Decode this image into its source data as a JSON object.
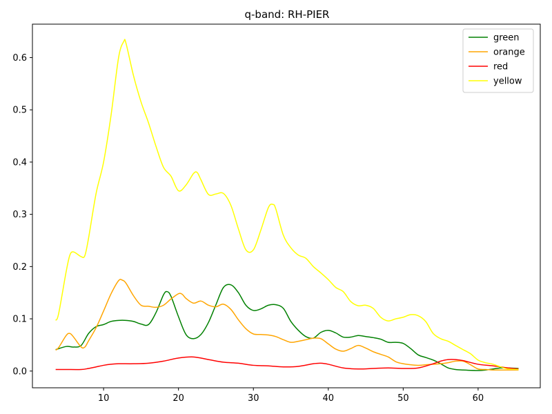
{
  "chart_data": {
    "type": "line",
    "title": "q-band: RH-PIER",
    "xlabel": "",
    "ylabel": "",
    "xlim": [
      0.5,
      68.3
    ],
    "ylim": [
      -0.032,
      0.664
    ],
    "xticks": [
      10,
      20,
      30,
      40,
      50,
      60
    ],
    "yticks": [
      0.0,
      0.1,
      0.2,
      0.3,
      0.4,
      0.5,
      0.6
    ],
    "ytick_labels": [
      "0.0",
      "0.1",
      "0.2",
      "0.3",
      "0.4",
      "0.5",
      "0.6"
    ],
    "grid": false,
    "legend_position": "top-right",
    "series": [
      {
        "name": "green",
        "color": "#008000",
        "points": [
          [
            3.6,
            0.041
          ],
          [
            5,
            0.047
          ],
          [
            6,
            0.046
          ],
          [
            7,
            0.049
          ],
          [
            8,
            0.072
          ],
          [
            9,
            0.085
          ],
          [
            10,
            0.089
          ],
          [
            11,
            0.095
          ],
          [
            12,
            0.097
          ],
          [
            13,
            0.097
          ],
          [
            14,
            0.095
          ],
          [
            15,
            0.09
          ],
          [
            16,
            0.089
          ],
          [
            17,
            0.112
          ],
          [
            18,
            0.146
          ],
          [
            18.5,
            0.152
          ],
          [
            19,
            0.143
          ],
          [
            20,
            0.104
          ],
          [
            21,
            0.07
          ],
          [
            22,
            0.062
          ],
          [
            23,
            0.07
          ],
          [
            24,
            0.093
          ],
          [
            25,
            0.127
          ],
          [
            26,
            0.16
          ],
          [
            27,
            0.165
          ],
          [
            28,
            0.15
          ],
          [
            29,
            0.126
          ],
          [
            30,
            0.116
          ],
          [
            31,
            0.119
          ],
          [
            32,
            0.126
          ],
          [
            33,
            0.127
          ],
          [
            34,
            0.12
          ],
          [
            35,
            0.095
          ],
          [
            36,
            0.078
          ],
          [
            37,
            0.066
          ],
          [
            38,
            0.063
          ],
          [
            39,
            0.074
          ],
          [
            40,
            0.078
          ],
          [
            41,
            0.073
          ],
          [
            42,
            0.065
          ],
          [
            43,
            0.065
          ],
          [
            44,
            0.068
          ],
          [
            45,
            0.066
          ],
          [
            46,
            0.064
          ],
          [
            47,
            0.061
          ],
          [
            48,
            0.055
          ],
          [
            49,
            0.055
          ],
          [
            50,
            0.053
          ],
          [
            51,
            0.043
          ],
          [
            52,
            0.031
          ],
          [
            53,
            0.026
          ],
          [
            54,
            0.021
          ],
          [
            55,
            0.014
          ],
          [
            56,
            0.006
          ],
          [
            57,
            0.003
          ],
          [
            58,
            0.002
          ],
          [
            60,
            0.001
          ],
          [
            61,
            0.002
          ],
          [
            62,
            0.004
          ],
          [
            63,
            0.006
          ],
          [
            64,
            0.006
          ],
          [
            65.4,
            0.005
          ]
        ]
      },
      {
        "name": "orange",
        "color": "#ffa500",
        "points": [
          [
            3.6,
            0.04
          ],
          [
            4,
            0.045
          ],
          [
            5,
            0.068
          ],
          [
            5.5,
            0.072
          ],
          [
            6,
            0.065
          ],
          [
            7,
            0.046
          ],
          [
            7.5,
            0.046
          ],
          [
            8,
            0.058
          ],
          [
            9,
            0.083
          ],
          [
            10,
            0.115
          ],
          [
            11,
            0.148
          ],
          [
            12,
            0.173
          ],
          [
            12.5,
            0.174
          ],
          [
            13,
            0.168
          ],
          [
            14,
            0.144
          ],
          [
            15,
            0.126
          ],
          [
            16,
            0.124
          ],
          [
            17,
            0.122
          ],
          [
            18,
            0.126
          ],
          [
            19,
            0.138
          ],
          [
            20,
            0.148
          ],
          [
            20.5,
            0.147
          ],
          [
            21,
            0.139
          ],
          [
            22,
            0.13
          ],
          [
            23,
            0.134
          ],
          [
            24,
            0.126
          ],
          [
            25,
            0.123
          ],
          [
            26,
            0.128
          ],
          [
            27,
            0.118
          ],
          [
            28,
            0.098
          ],
          [
            29,
            0.081
          ],
          [
            30,
            0.071
          ],
          [
            31,
            0.07
          ],
          [
            32,
            0.069
          ],
          [
            33,
            0.066
          ],
          [
            34,
            0.06
          ],
          [
            35,
            0.055
          ],
          [
            36,
            0.057
          ],
          [
            37,
            0.06
          ],
          [
            38,
            0.063
          ],
          [
            39,
            0.062
          ],
          [
            40,
            0.052
          ],
          [
            41,
            0.042
          ],
          [
            42,
            0.038
          ],
          [
            43,
            0.043
          ],
          [
            44,
            0.049
          ],
          [
            45,
            0.044
          ],
          [
            46,
            0.037
          ],
          [
            47,
            0.032
          ],
          [
            48,
            0.027
          ],
          [
            49,
            0.018
          ],
          [
            50,
            0.014
          ],
          [
            51,
            0.012
          ],
          [
            52,
            0.011
          ],
          [
            53,
            0.012
          ],
          [
            54,
            0.013
          ],
          [
            55,
            0.014
          ],
          [
            56,
            0.016
          ],
          [
            57,
            0.019
          ],
          [
            58,
            0.019
          ],
          [
            59,
            0.012
          ],
          [
            60,
            0.004
          ],
          [
            61,
            0.003
          ],
          [
            62,
            0.002
          ],
          [
            63,
            0.002
          ],
          [
            64,
            0.002
          ],
          [
            65.4,
            0.002
          ]
        ]
      },
      {
        "name": "red",
        "color": "#ff0000",
        "points": [
          [
            3.6,
            0.003
          ],
          [
            5,
            0.003
          ],
          [
            7,
            0.003
          ],
          [
            8,
            0.005
          ],
          [
            9,
            0.008
          ],
          [
            10,
            0.011
          ],
          [
            11,
            0.013
          ],
          [
            12,
            0.014
          ],
          [
            14,
            0.014
          ],
          [
            16,
            0.015
          ],
          [
            18,
            0.019
          ],
          [
            20,
            0.025
          ],
          [
            22,
            0.027
          ],
          [
            24,
            0.022
          ],
          [
            26,
            0.017
          ],
          [
            28,
            0.015
          ],
          [
            30,
            0.011
          ],
          [
            32,
            0.01
          ],
          [
            34,
            0.008
          ],
          [
            36,
            0.009
          ],
          [
            38,
            0.014
          ],
          [
            39,
            0.015
          ],
          [
            40,
            0.013
          ],
          [
            42,
            0.006
          ],
          [
            44,
            0.004
          ],
          [
            46,
            0.005
          ],
          [
            48,
            0.006
          ],
          [
            50,
            0.005
          ],
          [
            52,
            0.006
          ],
          [
            54,
            0.014
          ],
          [
            55,
            0.019
          ],
          [
            56,
            0.022
          ],
          [
            57,
            0.022
          ],
          [
            58,
            0.02
          ],
          [
            60,
            0.013
          ],
          [
            62,
            0.01
          ],
          [
            64,
            0.006
          ],
          [
            65.4,
            0.004
          ]
        ]
      },
      {
        "name": "yellow",
        "color": "#ffff00",
        "points": [
          [
            3.6,
            0.097
          ],
          [
            4,
            0.11
          ],
          [
            5,
            0.19
          ],
          [
            5.5,
            0.222
          ],
          [
            6,
            0.228
          ],
          [
            7,
            0.219
          ],
          [
            7.5,
            0.221
          ],
          [
            8,
            0.255
          ],
          [
            9,
            0.34
          ],
          [
            10,
            0.4
          ],
          [
            11,
            0.49
          ],
          [
            12,
            0.6
          ],
          [
            12.7,
            0.631
          ],
          [
            13,
            0.627
          ],
          [
            14,
            0.565
          ],
          [
            15,
            0.515
          ],
          [
            16,
            0.475
          ],
          [
            17,
            0.43
          ],
          [
            18,
            0.39
          ],
          [
            19,
            0.373
          ],
          [
            20,
            0.345
          ],
          [
            21,
            0.356
          ],
          [
            22,
            0.378
          ],
          [
            22.5,
            0.38
          ],
          [
            23,
            0.366
          ],
          [
            24,
            0.338
          ],
          [
            25,
            0.339
          ],
          [
            26,
            0.34
          ],
          [
            27,
            0.317
          ],
          [
            28,
            0.272
          ],
          [
            29,
            0.232
          ],
          [
            30,
            0.232
          ],
          [
            31,
            0.27
          ],
          [
            32,
            0.313
          ],
          [
            32.6,
            0.319
          ],
          [
            33,
            0.31
          ],
          [
            34,
            0.26
          ],
          [
            35,
            0.236
          ],
          [
            36,
            0.222
          ],
          [
            37,
            0.216
          ],
          [
            38,
            0.2
          ],
          [
            39,
            0.188
          ],
          [
            40,
            0.175
          ],
          [
            41,
            0.16
          ],
          [
            42,
            0.152
          ],
          [
            43,
            0.133
          ],
          [
            44,
            0.125
          ],
          [
            45,
            0.126
          ],
          [
            46,
            0.12
          ],
          [
            47,
            0.103
          ],
          [
            48,
            0.096
          ],
          [
            49,
            0.1
          ],
          [
            50,
            0.103
          ],
          [
            51,
            0.108
          ],
          [
            52,
            0.106
          ],
          [
            53,
            0.095
          ],
          [
            54,
            0.072
          ],
          [
            55,
            0.062
          ],
          [
            56,
            0.057
          ],
          [
            57,
            0.049
          ],
          [
            58,
            0.041
          ],
          [
            59,
            0.033
          ],
          [
            60,
            0.021
          ],
          [
            61,
            0.016
          ],
          [
            62,
            0.013
          ],
          [
            63,
            0.008
          ],
          [
            64,
            0.004
          ],
          [
            65.4,
            0.003
          ]
        ]
      }
    ]
  }
}
